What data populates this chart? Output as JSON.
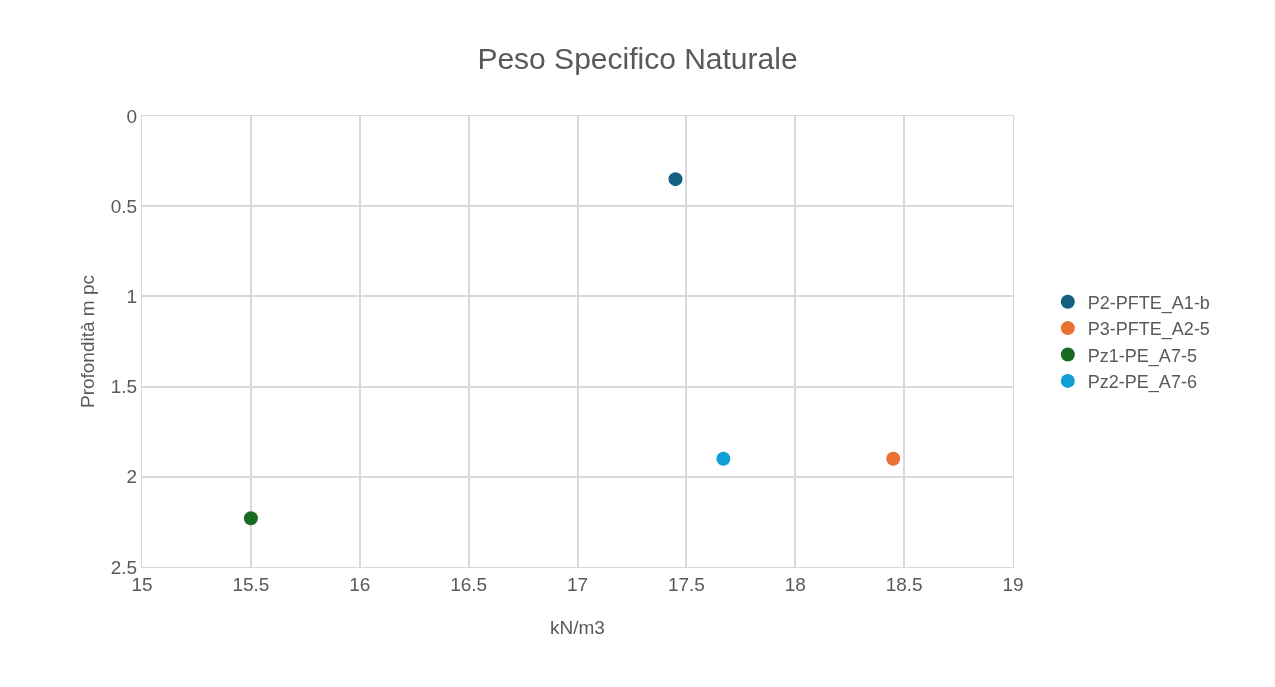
{
  "chart_data": {
    "type": "scatter",
    "title": "Peso Specifico Naturale",
    "xlabel": "kN/m3",
    "ylabel": "Profondità m pc",
    "series": [
      {
        "name": "P2-PFTE_A1-b",
        "color": "#156082",
        "x": [
          17.45
        ],
        "values": [
          0.35
        ]
      },
      {
        "name": "P3-PFTE_A2-5",
        "color": "#e97132",
        "x": [
          18.45
        ],
        "values": [
          1.9
        ]
      },
      {
        "name": "Pz1-PE_A7-5",
        "color": "#196b24",
        "x": [
          15.5
        ],
        "values": [
          2.23
        ]
      },
      {
        "name": "Pz2-PE_A7-6",
        "color": "#0f9ed5",
        "x": [
          17.67
        ],
        "values": [
          1.9
        ]
      }
    ],
    "xlim": [
      15,
      19
    ],
    "xticks": [
      15,
      15.5,
      16,
      16.5,
      17,
      17.5,
      18,
      18.5,
      19
    ],
    "ylim": [
      2.5,
      0
    ],
    "yticks": [
      0,
      0.5,
      1,
      1.5,
      2,
      2.5
    ],
    "grid": true,
    "legend": "right",
    "marker": "circle"
  }
}
